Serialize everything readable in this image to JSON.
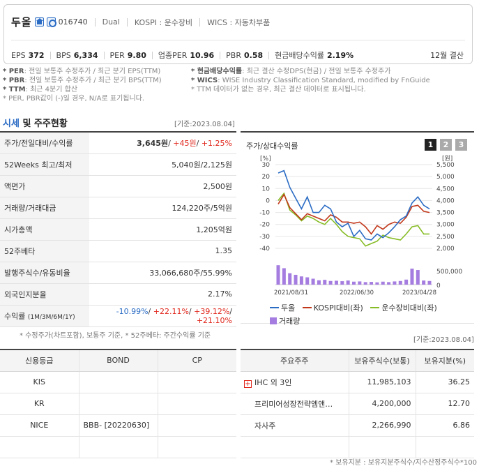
{
  "header": {
    "company_name": "두올",
    "home_icon": "home-icon",
    "ir_icon": "ir-icon",
    "code": "016740",
    "market_type": "Dual",
    "kospi": "KOSPI : 운수장비",
    "wics": "WICS : 자동차부품",
    "metrics": [
      {
        "label": "EPS",
        "value": "372"
      },
      {
        "label": "BPS",
        "value": "6,334"
      },
      {
        "label": "PER",
        "value": "9.80"
      },
      {
        "label": "업종PER",
        "value": "10.96"
      },
      {
        "label": "PBR",
        "value": "0.58"
      },
      {
        "label": "현금배당수익률",
        "value": "2.19%"
      }
    ],
    "fiscal": "12월 결산"
  },
  "notes": {
    "per_label": "* PER",
    "per_text": ": 전일 보통주 수정주가 / 최근 분기 EPS(TTM)",
    "pbr_label": "* PBR",
    "pbr_text": ": 전일 보통주 수정주가 / 최근 분기 BPS(TTM)",
    "ttm_label": "* TTM",
    "ttm_text": ": 최근 4분기 합산",
    "per_pbr_note": "* PER, PBR값이 (-)일 경우, N/A로 표기됩니다.",
    "div_label": "* 현금배당수익률",
    "div_text": ": 최근 결산 수정DPS(현금) / 전일 보통주 수정주가",
    "wics_label": "* WICS",
    "wics_text": ": WISE Industry Classification Standard, modified by FnGuide",
    "ttm_data_note": "* TTM 데이터가 없는 경우, 최근 결산 데이터로 표시됩니다."
  },
  "price_section": {
    "title_a": "시세",
    "title_b": " 및 주주현황",
    "date": "[기준:2023.08.04]",
    "rows": {
      "price_label": "주가/전일대비/수익률",
      "price": "3,645원",
      "change": "+45원",
      "change_rate": "+1.25%",
      "week52_label": "52Weeks 최고/최저",
      "week52": "5,040원/2,125원",
      "par_label": "액면가",
      "par": "2,500원",
      "volume_label": "거래량/거래대금",
      "volume": "124,220주/5억원",
      "mcap_label": "시가총액",
      "mcap": "1,205억원",
      "beta_label": "52주베타",
      "beta": "1.35",
      "shares_label": "발행주식수/유동비율",
      "shares": "33,066,680주/55.99%",
      "foreign_label": "외국인지분율",
      "foreign": "2.17%",
      "return_label": "수익률",
      "return_periods": "(1M/3M/6M/1Y)",
      "return_1m": "-10.99%",
      "return_3m": "+22.11%",
      "return_6m": "+39.12%",
      "return_1y": "+21.10%"
    },
    "note": "* 수정주가(차트포함), 보통주 기준, * 52주베타: 주간수익률 기준"
  },
  "chart_panel": {
    "title": "주가/상대수익률",
    "buttons": [
      "1",
      "2",
      "3"
    ],
    "date": "[기준:2023.08.04]"
  },
  "chart_data": {
    "type": "line",
    "left_axis_unit": "[%]",
    "right_axis_unit": "[원]",
    "left_ticks": [
      "30",
      "20",
      "10",
      "0",
      "-10",
      "-20",
      "-30",
      "-40"
    ],
    "right_ticks": [
      "5,500",
      "5,000",
      "4,500",
      "4,000",
      "3,500",
      "3,000",
      "2,500",
      "2,000"
    ],
    "volume_ticks": [
      "500,000",
      "0"
    ],
    "x_labels": [
      "2021/08/31",
      "2022/06/30",
      "2023/04/28"
    ],
    "ylim_left": [
      -40,
      30
    ],
    "series": [
      {
        "name": "두올",
        "color": "#2b6cc4",
        "values": [
          23,
          25,
          11,
          2,
          -7,
          3,
          -10,
          -10,
          -4,
          -7,
          -18,
          -22,
          -19,
          -30,
          -25,
          -32,
          -33,
          -28,
          -31,
          -27,
          -22,
          -16,
          -13,
          -2,
          3,
          -4,
          -7
        ]
      },
      {
        "name": "KOSPI대비(좌)",
        "color": "#c1371a",
        "values": [
          -3,
          5,
          -6,
          -11,
          -16,
          -11,
          -13,
          -15,
          -17,
          -12,
          -14,
          -18,
          -18,
          -19,
          -18,
          -22,
          -28,
          -21,
          -24,
          -20,
          -18,
          -19,
          -14,
          -5,
          -4,
          -9,
          -10
        ]
      },
      {
        "name": "운수장비대비(좌)",
        "color": "#86bc25",
        "values": [
          0,
          6,
          -8,
          -12,
          -17,
          -13,
          -15,
          -18,
          -20,
          -15,
          -20,
          -26,
          -30,
          -31,
          -32,
          -38,
          -36,
          -34,
          -29,
          -31,
          -32,
          -33,
          -28,
          -22,
          -21,
          -28,
          -28
        ]
      },
      {
        "name": "거래량",
        "color": "#a57de0",
        "type": "bar",
        "values": [
          850000,
          720000,
          500000,
          430000,
          360000,
          320000,
          260000,
          190000,
          210000,
          160000,
          170000,
          150000,
          180000,
          130000,
          140000,
          110000,
          120000,
          100000,
          130000,
          110000,
          140000,
          160000,
          220000,
          700000,
          640000,
          180000,
          160000
        ]
      }
    ],
    "volume_max": 1100000
  },
  "credit_table": {
    "headers": [
      "신용등급",
      "BOND",
      "CP"
    ],
    "rows": [
      {
        "agency": "KIS",
        "bond": "",
        "cp": ""
      },
      {
        "agency": "KR",
        "bond": "",
        "cp": ""
      },
      {
        "agency": "NICE",
        "bond": "BBB-  [20220630]",
        "cp": ""
      }
    ]
  },
  "holder_table": {
    "headers": [
      "주요주주",
      "보유주식수(보통)",
      "보유지분(%)"
    ],
    "rows": [
      {
        "name": "IHC 외 3인",
        "shares": "11,985,103",
        "ratio": "36.25",
        "icon": "plus-icon"
      },
      {
        "name": "프리미어성장전략엠앤…",
        "shares": "4,200,000",
        "ratio": "12.70"
      },
      {
        "name": "자사주",
        "shares": "2,266,990",
        "ratio": "6.86"
      }
    ],
    "note": "* 보유지분 : 보유지분주식수/지수산정주식수*100"
  }
}
